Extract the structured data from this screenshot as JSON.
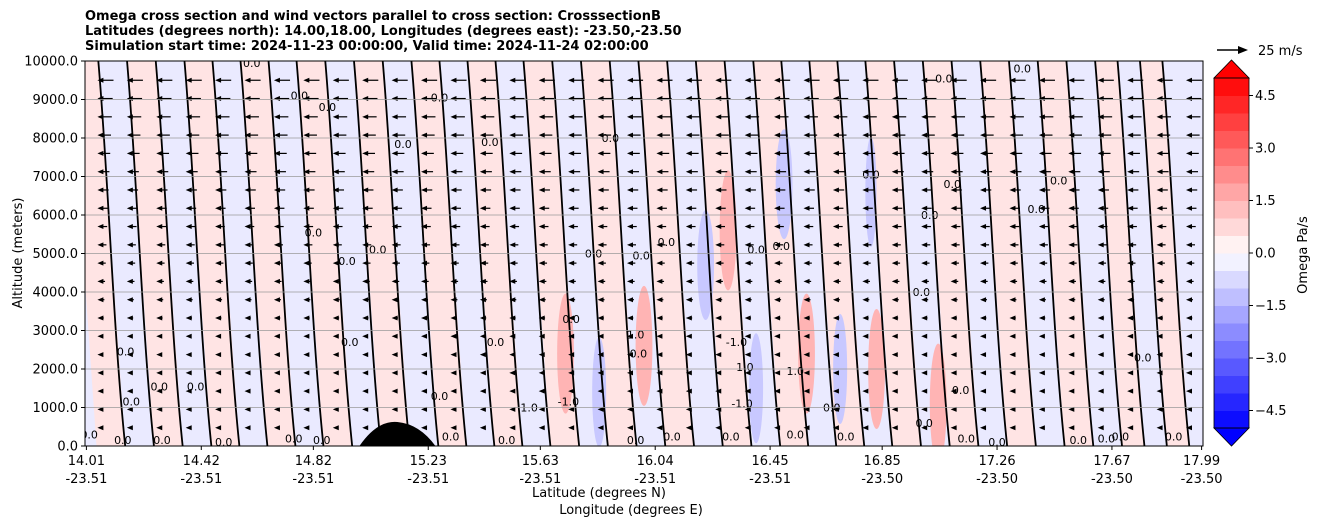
{
  "chart_data": {
    "type": "heatmap",
    "title_lines": [
      "Omega cross section and wind vectors parallel to cross section: CrosssectionB",
      "Latitudes (degrees north): 14.00,18.00, Longitudes (degrees east): -23.50,-23.50",
      "Simulation start time: 2024-11-23 00:00:00, Valid time: 2024-11-24 02:00:00"
    ],
    "xlabel_lines": [
      "Latitude (degrees N)",
      "Longitude (degrees E)"
    ],
    "ylabel": "Altitude (meters)",
    "x_ticks": [
      {
        "lat": "14.01",
        "lon": "-23.51"
      },
      {
        "lat": "14.42",
        "lon": "-23.51"
      },
      {
        "lat": "14.82",
        "lon": "-23.51"
      },
      {
        "lat": "15.23",
        "lon": "-23.51"
      },
      {
        "lat": "15.63",
        "lon": "-23.51"
      },
      {
        "lat": "16.04",
        "lon": "-23.51"
      },
      {
        "lat": "16.45",
        "lon": "-23.51"
      },
      {
        "lat": "16.85",
        "lon": "-23.50"
      },
      {
        "lat": "17.26",
        "lon": "-23.50"
      },
      {
        "lat": "17.67",
        "lon": "-23.50"
      },
      {
        "lat": "17.99",
        "lon": "-23.50"
      }
    ],
    "y_ticks": [
      "0.0",
      "1000.0",
      "2000.0",
      "3000.0",
      "4000.0",
      "5000.0",
      "6000.0",
      "7000.0",
      "8000.0",
      "9000.0",
      "10000.0"
    ],
    "ylim": [
      0,
      10000
    ],
    "grid": "horizontal",
    "colorbar": {
      "label": "Omega Pa/s",
      "ticks": [
        "4.5",
        "3.0",
        "1.5",
        "0.0",
        "−1.5",
        "−3.0",
        "−4.5"
      ],
      "range": [
        -5.0,
        5.0
      ],
      "extend": "both",
      "colormap": "bwr",
      "high_color": "#ff0000",
      "low_color": "#0000ff"
    },
    "quiver_key": {
      "label": "25 m/s",
      "position": "top-right"
    },
    "contour_labels": [
      {
        "text": "0.0",
        "lat": 14.02,
        "z": 300
      },
      {
        "text": "0.0",
        "lat": 14.15,
        "z": 2450
      },
      {
        "text": "0.0",
        "lat": 14.14,
        "z": 150
      },
      {
        "text": "0.0",
        "lat": 14.17,
        "z": 1150
      },
      {
        "text": "0.0",
        "lat": 14.27,
        "z": 1550
      },
      {
        "text": "0.0",
        "lat": 14.4,
        "z": 1550
      },
      {
        "text": "0.0",
        "lat": 14.28,
        "z": 150
      },
      {
        "text": "0.0",
        "lat": 14.5,
        "z": 100
      },
      {
        "text": "0.0",
        "lat": 14.6,
        "z": 9950
      },
      {
        "text": "0.0",
        "lat": 14.77,
        "z": 9100
      },
      {
        "text": "0.0",
        "lat": 14.87,
        "z": 8800
      },
      {
        "text": "0.0",
        "lat": 14.82,
        "z": 5550
      },
      {
        "text": "0.0",
        "lat": 14.75,
        "z": 200
      },
      {
        "text": "0.0",
        "lat": 14.85,
        "z": 150
      },
      {
        "text": "0.0",
        "lat": 14.94,
        "z": 4800
      },
      {
        "text": "0.0",
        "lat": 14.95,
        "z": 2700
      },
      {
        "text": "0.0",
        "lat": 15.05,
        "z": 5100
      },
      {
        "text": "0.0",
        "lat": 15.14,
        "z": 7850
      },
      {
        "text": "0.0",
        "lat": 15.27,
        "z": 9050
      },
      {
        "text": "0.0",
        "lat": 15.27,
        "z": 1300
      },
      {
        "text": "0.0",
        "lat": 15.31,
        "z": 250
      },
      {
        "text": "0.0",
        "lat": 15.45,
        "z": 7900
      },
      {
        "text": "0.0",
        "lat": 15.47,
        "z": 2700
      },
      {
        "text": "0.0",
        "lat": 15.51,
        "z": 150
      },
      {
        "text": "1.0",
        "lat": 15.59,
        "z": 1000
      },
      {
        "text": "-1.0",
        "lat": 15.73,
        "z": 1150
      },
      {
        "text": "0.0",
        "lat": 15.74,
        "z": 3300
      },
      {
        "text": "0.0",
        "lat": 15.82,
        "z": 5000
      },
      {
        "text": "0.0",
        "lat": 15.88,
        "z": 8000
      },
      {
        "text": "1.0",
        "lat": 15.97,
        "z": 2900
      },
      {
        "text": "0.0",
        "lat": 15.98,
        "z": 2400
      },
      {
        "text": "0.0",
        "lat": 15.99,
        "z": 4950
      },
      {
        "text": "0.0",
        "lat": 16.08,
        "z": 5300
      },
      {
        "text": "0.0",
        "lat": 15.97,
        "z": 150
      },
      {
        "text": "0.0",
        "lat": 16.1,
        "z": 250
      },
      {
        "text": "-1.0",
        "lat": 16.33,
        "z": 2700
      },
      {
        "text": "1.0",
        "lat": 16.36,
        "z": 2050
      },
      {
        "text": "-1.0",
        "lat": 16.35,
        "z": 1100
      },
      {
        "text": "0.0",
        "lat": 16.31,
        "z": 250
      },
      {
        "text": "0.0",
        "lat": 16.4,
        "z": 5100
      },
      {
        "text": "0.0",
        "lat": 16.49,
        "z": 5200
      },
      {
        "text": "1.0",
        "lat": 16.54,
        "z": 1950
      },
      {
        "text": "0.0",
        "lat": 16.54,
        "z": 300
      },
      {
        "text": "0.0",
        "lat": 16.67,
        "z": 1000
      },
      {
        "text": "0.0",
        "lat": 16.72,
        "z": 250
      },
      {
        "text": "0.0",
        "lat": 16.81,
        "z": 7050
      },
      {
        "text": "0.0",
        "lat": 16.99,
        "z": 4000
      },
      {
        "text": "0.0",
        "lat": 17.0,
        "z": 600
      },
      {
        "text": "0.0",
        "lat": 17.02,
        "z": 6000
      },
      {
        "text": "0.0",
        "lat": 17.07,
        "z": 9550
      },
      {
        "text": "0.0",
        "lat": 17.1,
        "z": 6800
      },
      {
        "text": "0.0",
        "lat": 17.13,
        "z": 1450
      },
      {
        "text": "0.0",
        "lat": 17.15,
        "z": 200
      },
      {
        "text": "0.0",
        "lat": 17.26,
        "z": 100
      },
      {
        "text": "0.0",
        "lat": 17.35,
        "z": 9800
      },
      {
        "text": "0.0",
        "lat": 17.4,
        "z": 6150
      },
      {
        "text": "0.0",
        "lat": 17.48,
        "z": 6900
      },
      {
        "text": "0.0",
        "lat": 17.55,
        "z": 150
      },
      {
        "text": "0.0",
        "lat": 17.65,
        "z": 200
      },
      {
        "text": "0.0",
        "lat": 17.7,
        "z": 250
      },
      {
        "text": "0.0",
        "lat": 17.78,
        "z": 2300
      },
      {
        "text": "0.0",
        "lat": 17.89,
        "z": 250
      }
    ]
  },
  "colors": {
    "positive_shade": "#ffe4e4",
    "positive_strong": "#ffb4b4",
    "negative_shade": "#eaeaff",
    "negative_strong": "#c8c8ff",
    "terrain": "#000000",
    "contour": "#000000"
  },
  "icons": {
    "quiver_key_arrow": "arrow-right-icon",
    "colorbar_up": "triangle-up-icon",
    "colorbar_down": "triangle-down-icon"
  }
}
